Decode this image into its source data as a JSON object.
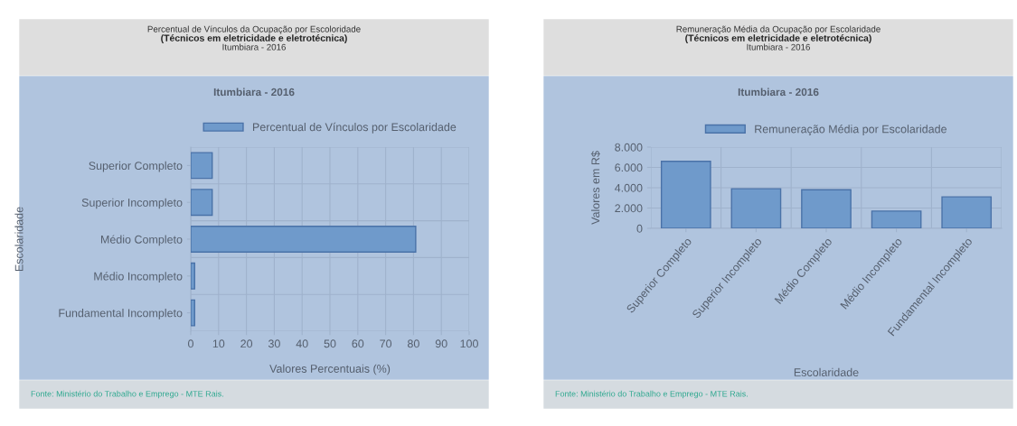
{
  "chart_data": [
    {
      "type": "bar",
      "orientation": "horizontal",
      "title": "Percentual de Vínculos da Ocupação por Escoloridade",
      "subtitle": "(Técnicos em eletricidade e eletrotécnica)",
      "annotations": [
        "Itumbiara - 2016",
        "Itumbiara - 2016",
        "Fonte: Ministério do Trabalho e Emprego - MTE Rais."
      ],
      "categories": [
        "Superior Completo",
        "Superior Incompleto",
        "Médio Completo",
        "Médio Incompleto",
        "Fundamental Incompleto"
      ],
      "series": [
        {
          "name": "Percentual de Vínculos por Escolaridade",
          "color": "#6f9acb",
          "values": [
            7.7,
            7.7,
            80.8,
            1.4,
            1.4
          ]
        }
      ],
      "xlabel": "Valores Percentuais (%)",
      "ylabel": "Escolaridade",
      "xlim": [
        0,
        100
      ],
      "xticks": [
        0,
        10,
        20,
        30,
        40,
        50,
        60,
        70,
        80,
        90,
        100
      ],
      "grid": true,
      "legend": "top"
    },
    {
      "type": "bar",
      "title": "Remuneração Média da Ocupação por Escolaridade",
      "subtitle": "(Técnicos em eletricidade e eletrotécnica)",
      "annotations": [
        "Itumbiara - 2016",
        "Itumbiara - 2016",
        "Fonte: Ministério do Trabalho e Emprego - MTE Rais."
      ],
      "categories": [
        "Superior Completo",
        "Superior Incompleto",
        "Médio Completo",
        "Médio Incompleto",
        "Fundamental Incompleto"
      ],
      "series": [
        {
          "name": "Remuneração Média por Escolaridade",
          "color": "#6f9acb",
          "values": [
            6600,
            3900,
            3800,
            1700,
            3100
          ]
        }
      ],
      "xlabel": "Escolaridade",
      "ylabel": "Valores em R$",
      "ylim": [
        0,
        8000
      ],
      "yticks": [
        0,
        {
          "value": 2000,
          "label": "2.000"
        },
        {
          "value": 4000,
          "label": "4.000"
        },
        {
          "value": 6000,
          "label": "6.000"
        },
        {
          "value": 8000,
          "label": "8.000"
        }
      ],
      "grid": true,
      "legend": "top"
    }
  ]
}
